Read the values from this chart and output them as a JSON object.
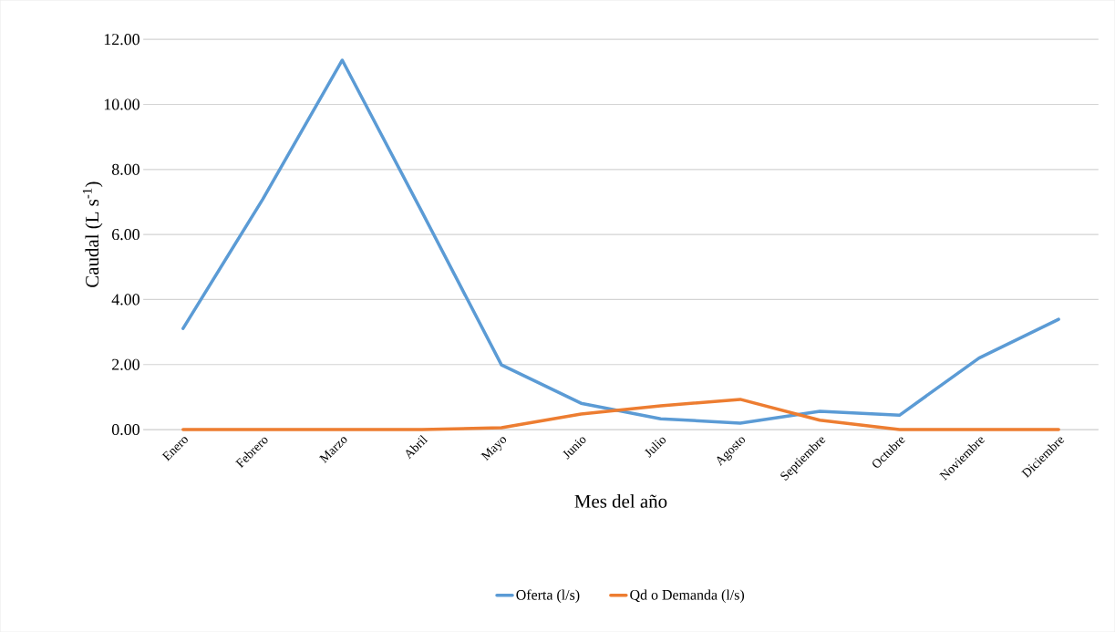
{
  "chart_data": {
    "type": "line",
    "xlabel": "Mes del año",
    "ylabel": "Caudal (L s$^{-1}$)",
    "categories": [
      "Enero",
      "Febrero",
      "Marzo",
      "Abril",
      "Mayo",
      "Junio",
      "Julio",
      "Agosto",
      "Septiembre",
      "Octubre",
      "Noviembre",
      "Diciembre"
    ],
    "series": [
      {
        "name": "Oferta (l/s)",
        "color": "#5b9bd5",
        "values": [
          3.11,
          7.08,
          11.36,
          6.7,
          1.99,
          0.81,
          0.33,
          0.2,
          0.56,
          0.44,
          2.2,
          3.39
        ]
      },
      {
        "name": "Qd o Demanda (l/s)",
        "color": "#ed7d31",
        "values": [
          0,
          0,
          0,
          0,
          0.06,
          0.48,
          0.73,
          0.93,
          0.29,
          0,
          0,
          0
        ]
      }
    ],
    "ylim": [
      0,
      12
    ],
    "yticks": [
      {
        "value": 0,
        "label": "0.00"
      },
      {
        "value": 2,
        "label": "2.00"
      },
      {
        "value": 4,
        "label": "4.00"
      },
      {
        "value": 6,
        "label": "6.00"
      },
      {
        "value": 8,
        "label": "8.00"
      },
      {
        "value": 10,
        "label": "10.00"
      },
      {
        "value": 12,
        "label": "12.00"
      }
    ],
    "grid": "y",
    "legend": "bottom",
    "marker": "none",
    "line_style": "solid"
  }
}
